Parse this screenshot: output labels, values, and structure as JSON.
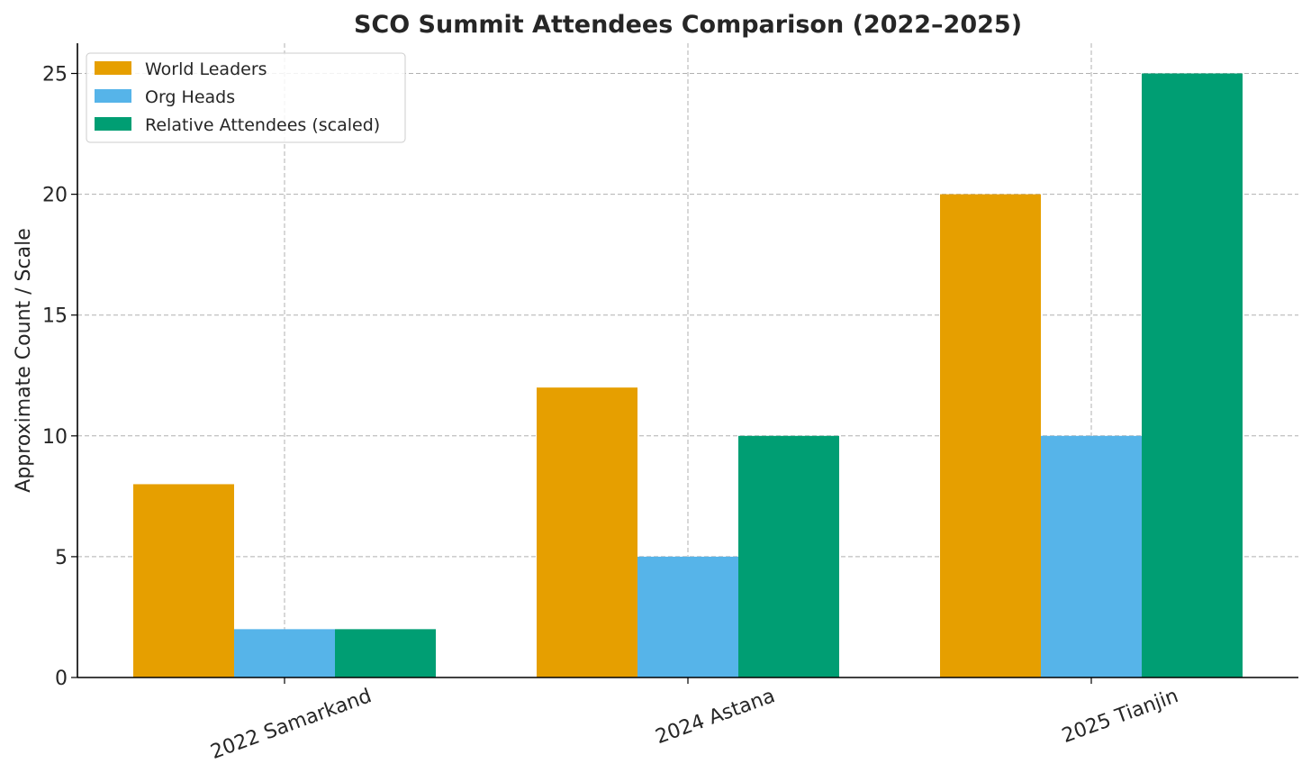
{
  "chart_data": {
    "type": "bar",
    "title": "SCO Summit Attendees Comparison (2022–2025)",
    "xlabel": "",
    "ylabel": "Approximate Count / Scale",
    "categories": [
      "2022 Samarkand",
      "2024 Astana",
      "2025 Tianjin"
    ],
    "series": [
      {
        "name": "World Leaders",
        "values": [
          8,
          12,
          20
        ],
        "color": "#E69F00"
      },
      {
        "name": "Org Heads",
        "values": [
          2,
          5,
          10
        ],
        "color": "#56B4E9"
      },
      {
        "name": "Relative Attendees (scaled)",
        "values": [
          2,
          10,
          25
        ],
        "color": "#009E73"
      }
    ],
    "ylim": [
      0,
      26.25
    ],
    "yticks": [
      "0",
      "5",
      "10",
      "15",
      "20",
      "25"
    ],
    "grid": true,
    "legend_position": "top-left"
  }
}
